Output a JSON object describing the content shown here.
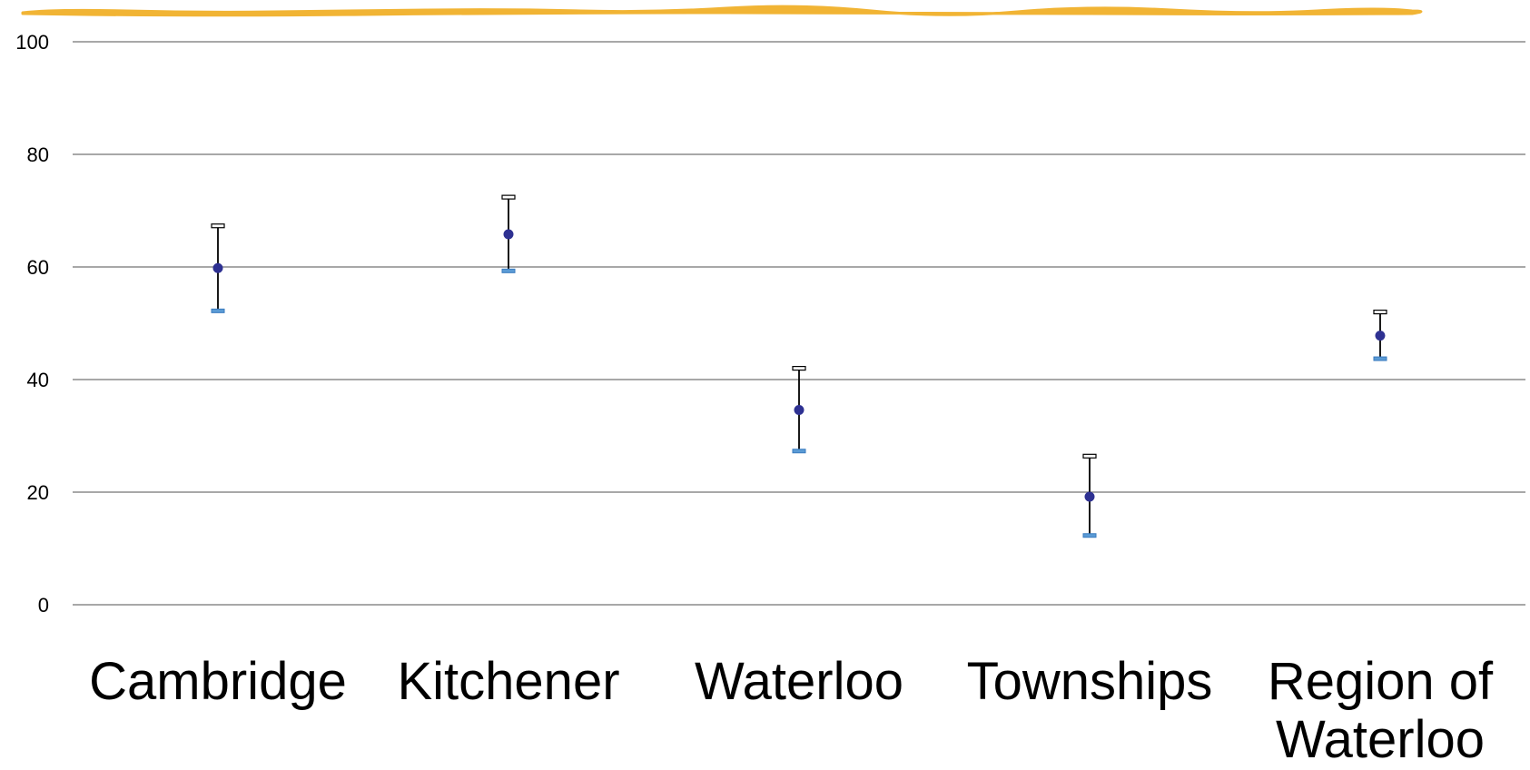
{
  "chart_data": {
    "type": "scatter",
    "categories": [
      "Cambridge",
      "Kitchener",
      "Waterloo",
      "Townships",
      "Region of Waterloo"
    ],
    "series": [
      {
        "values": [
          59.8,
          65.8,
          34.6,
          19.2,
          47.8
        ],
        "upper": [
          67.3,
          72.4,
          42.0,
          26.4,
          52.0
        ],
        "lower": [
          52.2,
          59.3,
          27.3,
          12.3,
          43.7
        ]
      }
    ],
    "yticks": [
      0,
      20,
      40,
      60,
      80,
      100
    ],
    "ylim": [
      0,
      100
    ],
    "grid": true,
    "colors": {
      "point": "#2e3192",
      "whisker": "#000000",
      "upper_cap": "#ffffff",
      "lower_cap": "#5b9bd5",
      "grid": "#8c8c8c",
      "banner": "#f1b434"
    }
  }
}
